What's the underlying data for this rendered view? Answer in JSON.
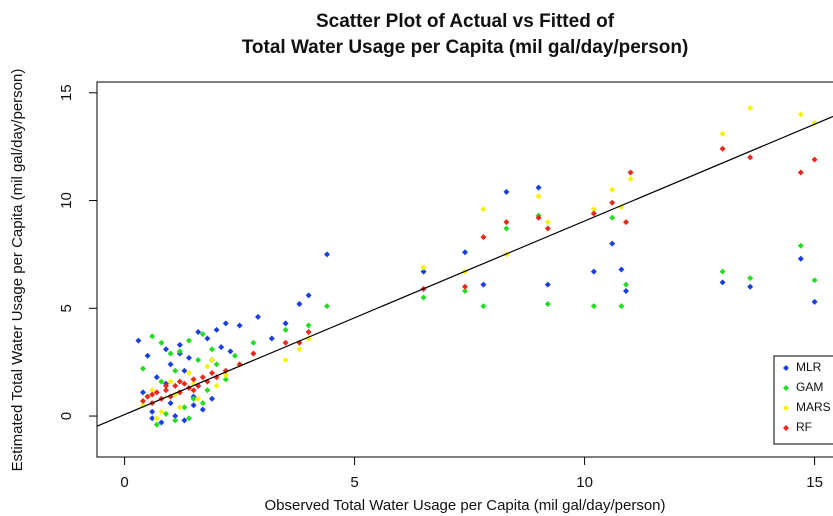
{
  "chart_data": {
    "type": "scatter",
    "title": [
      "Scatter Plot of Actual vs Fitted of",
      "Total Water Usage per Capita (mil gal/day/person)"
    ],
    "x_label": "Observed Total Water Usage per Capita (mil gal/day/person)",
    "y_label": "Estimated Total Water Usage per Capita (mil gal/day/person)",
    "xlim": [
      -0.6,
      15.4
    ],
    "ylim": [
      -1.9,
      15.5
    ],
    "xticks": [
      0,
      5,
      10,
      15
    ],
    "yticks": [
      0,
      5,
      10,
      15
    ],
    "legend": "bottom-right",
    "reference_line": {
      "x": [
        -0.6,
        15.4
      ],
      "y": [
        -0.47,
        13.9
      ],
      "color": "#000000"
    },
    "series": [
      {
        "name": "MLR",
        "color": "#1a3fe0",
        "x": [
          4.4,
          6.5,
          7.4,
          7.8,
          8.3,
          9.0,
          9.2,
          10.2,
          10.6,
          10.8,
          10.9,
          13.0,
          13.6,
          14.7,
          15.0,
          3.5,
          3.8,
          4.0,
          2.9,
          2.5,
          2.2,
          3.2,
          0.3,
          0.5,
          0.6,
          0.8,
          0.9,
          1.0,
          1.1,
          1.2,
          1.3,
          1.4,
          1.5,
          1.6,
          1.7,
          1.8,
          1.9,
          2.0,
          2.1,
          0.4,
          0.7,
          1.0,
          1.3,
          1.6,
          1.9,
          2.3,
          0.6,
          0.9,
          1.2,
          1.5
        ],
        "values": [
          7.5,
          6.7,
          7.6,
          6.1,
          10.4,
          10.6,
          6.1,
          6.7,
          8.0,
          6.8,
          5.8,
          6.2,
          6.0,
          7.3,
          5.3,
          4.3,
          5.2,
          5.6,
          4.6,
          4.2,
          4.3,
          3.6,
          3.5,
          2.8,
          0.2,
          -0.3,
          3.1,
          2.4,
          0.0,
          3.3,
          -0.2,
          2.7,
          0.5,
          3.9,
          0.3,
          3.6,
          0.8,
          4.0,
          3.2,
          1.1,
          1.8,
          0.6,
          2.1,
          1.4,
          2.6,
          3.0,
          -0.1,
          1.5,
          2.9,
          0.9
        ]
      },
      {
        "name": "GAM",
        "color": "#22dd22",
        "x": [
          4.4,
          6.5,
          7.4,
          7.8,
          8.3,
          9.0,
          9.2,
          10.2,
          10.6,
          10.8,
          10.9,
          13.0,
          13.6,
          14.7,
          15.0,
          3.5,
          4.0,
          0.4,
          0.6,
          0.7,
          0.8,
          0.9,
          1.0,
          1.1,
          1.2,
          1.3,
          1.4,
          1.5,
          1.6,
          1.7,
          1.8,
          1.9,
          2.0,
          2.2,
          0.5,
          0.8,
          1.1,
          1.4,
          1.7,
          2.4,
          2.8
        ],
        "values": [
          5.1,
          5.5,
          5.8,
          5.1,
          8.7,
          9.3,
          5.2,
          5.1,
          9.2,
          5.1,
          6.1,
          6.7,
          6.4,
          7.9,
          6.3,
          4.0,
          4.2,
          2.2,
          3.7,
          -0.4,
          3.4,
          0.1,
          2.9,
          -0.2,
          3.0,
          0.4,
          3.5,
          0.8,
          2.6,
          3.8,
          1.2,
          3.1,
          2.4,
          1.7,
          0.9,
          1.6,
          2.1,
          -0.1,
          0.6,
          2.8,
          3.4
        ]
      },
      {
        "name": "MARS",
        "color": "#f5f500",
        "x": [
          3.5,
          3.8,
          4.0,
          6.5,
          7.4,
          7.8,
          8.3,
          9.0,
          9.2,
          10.2,
          10.6,
          10.8,
          11.0,
          13.0,
          13.6,
          14.7,
          15.0,
          0.4,
          0.6,
          0.8,
          1.0,
          1.2,
          1.4,
          1.6,
          1.8,
          2.0,
          2.2,
          2.5,
          0.7,
          1.1,
          1.5,
          1.9
        ],
        "values": [
          2.6,
          3.1,
          3.6,
          6.9,
          6.7,
          9.6,
          7.5,
          10.2,
          9.0,
          9.6,
          10.5,
          9.7,
          11.0,
          13.1,
          14.3,
          14.0,
          13.6,
          0.5,
          1.2,
          0.2,
          1.6,
          0.4,
          2.0,
          0.8,
          2.3,
          1.4,
          1.9,
          2.4,
          -0.1,
          1.0,
          1.5,
          2.6
        ]
      },
      {
        "name": "RF",
        "color": "#e8291c",
        "x": [
          3.5,
          3.8,
          4.0,
          6.5,
          7.4,
          7.8,
          8.3,
          9.0,
          9.2,
          10.2,
          10.6,
          10.9,
          11.0,
          13.0,
          13.6,
          14.7,
          15.0,
          0.4,
          0.5,
          0.6,
          0.7,
          0.8,
          0.9,
          1.0,
          1.1,
          1.2,
          1.3,
          1.4,
          1.5,
          1.6,
          1.7,
          1.8,
          1.9,
          2.0,
          2.2,
          2.5,
          2.8,
          0.6,
          0.9,
          1.2,
          1.5
        ],
        "values": [
          3.4,
          3.4,
          3.9,
          5.9,
          6.0,
          8.3,
          9.0,
          9.2,
          8.7,
          9.4,
          9.9,
          9.0,
          11.3,
          12.4,
          12.0,
          11.3,
          11.9,
          0.7,
          0.9,
          0.6,
          1.1,
          0.8,
          1.2,
          0.9,
          1.4,
          1.1,
          1.5,
          1.3,
          1.7,
          1.4,
          1.8,
          1.6,
          2.0,
          1.8,
          2.1,
          2.4,
          2.9,
          1.0,
          1.4,
          1.6,
          1.2
        ]
      }
    ]
  }
}
